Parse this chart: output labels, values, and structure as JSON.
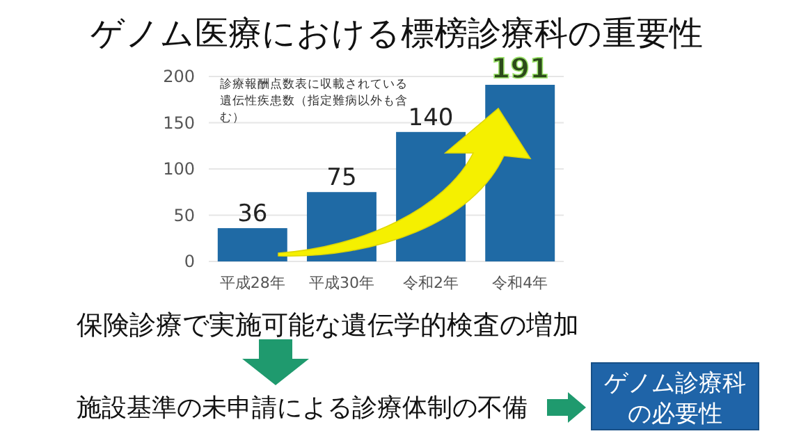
{
  "chart_data": {
    "type": "bar",
    "title": "ゲノム医療における標榜診療科の重要性",
    "categories": [
      "平成28年",
      "平成30年",
      "令和2年",
      "令和4年"
    ],
    "values": [
      36,
      75,
      140,
      191
    ],
    "color": "#1f6aa5",
    "ylim": [
      0,
      200
    ],
    "yticks": [
      0,
      50,
      100,
      150,
      200
    ],
    "grid": "y",
    "data_labels": true,
    "annotations": [
      "診療報酬点数表に収載されている遺伝性疾患数（指定難病以外も含む）",
      "保険診療で実施可能な遺伝学的検査の増加",
      "施設基準の未申請による診療体制の不備",
      "ゲノム診療科の必要性"
    ]
  }
}
